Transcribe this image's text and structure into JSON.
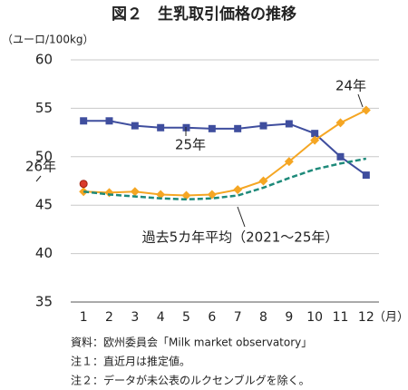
{
  "chart_data": {
    "type": "line",
    "title": "図２　生乳取引価格の推移",
    "y_axis_label": "（ユーロ/100kg）",
    "x_axis_label": "（月）",
    "categories": [
      "1",
      "2",
      "3",
      "4",
      "5",
      "6",
      "7",
      "8",
      "9",
      "10",
      "11",
      "12"
    ],
    "series": [
      {
        "name": "25年",
        "color": "#3f4e9e",
        "marker": "square",
        "values": [
          53.7,
          53.7,
          53.2,
          53.0,
          53.0,
          52.9,
          52.9,
          53.2,
          53.4,
          52.4,
          50.0,
          48.1
        ]
      },
      {
        "name": "24年",
        "color": "#f5a623",
        "marker": "diamond",
        "values": [
          46.4,
          46.3,
          46.4,
          46.1,
          46.0,
          46.1,
          46.6,
          47.5,
          49.5,
          51.7,
          53.5,
          54.8
        ]
      },
      {
        "name": "過去5カ年平均（2021～25年）",
        "color": "#1e8a7a",
        "marker": "none",
        "dash": true,
        "values": [
          46.4,
          46.1,
          45.9,
          45.7,
          45.6,
          45.7,
          46.0,
          46.8,
          47.8,
          48.7,
          49.3,
          49.8
        ]
      },
      {
        "name": "26年",
        "color": "#d93b2b",
        "marker": "circle",
        "values": [
          47.2,
          null,
          null,
          null,
          null,
          null,
          null,
          null,
          null,
          null,
          null,
          null
        ]
      }
    ],
    "ylim": [
      35,
      60
    ],
    "yticks": [
      35,
      40,
      45,
      50,
      55,
      60
    ],
    "grid": true,
    "notes": [
      "資料：欧州委員会「Milk market observatory」",
      "注１：直近月は推定値。",
      "注２：データが未公表のルクセンブルグを除く。"
    ]
  }
}
